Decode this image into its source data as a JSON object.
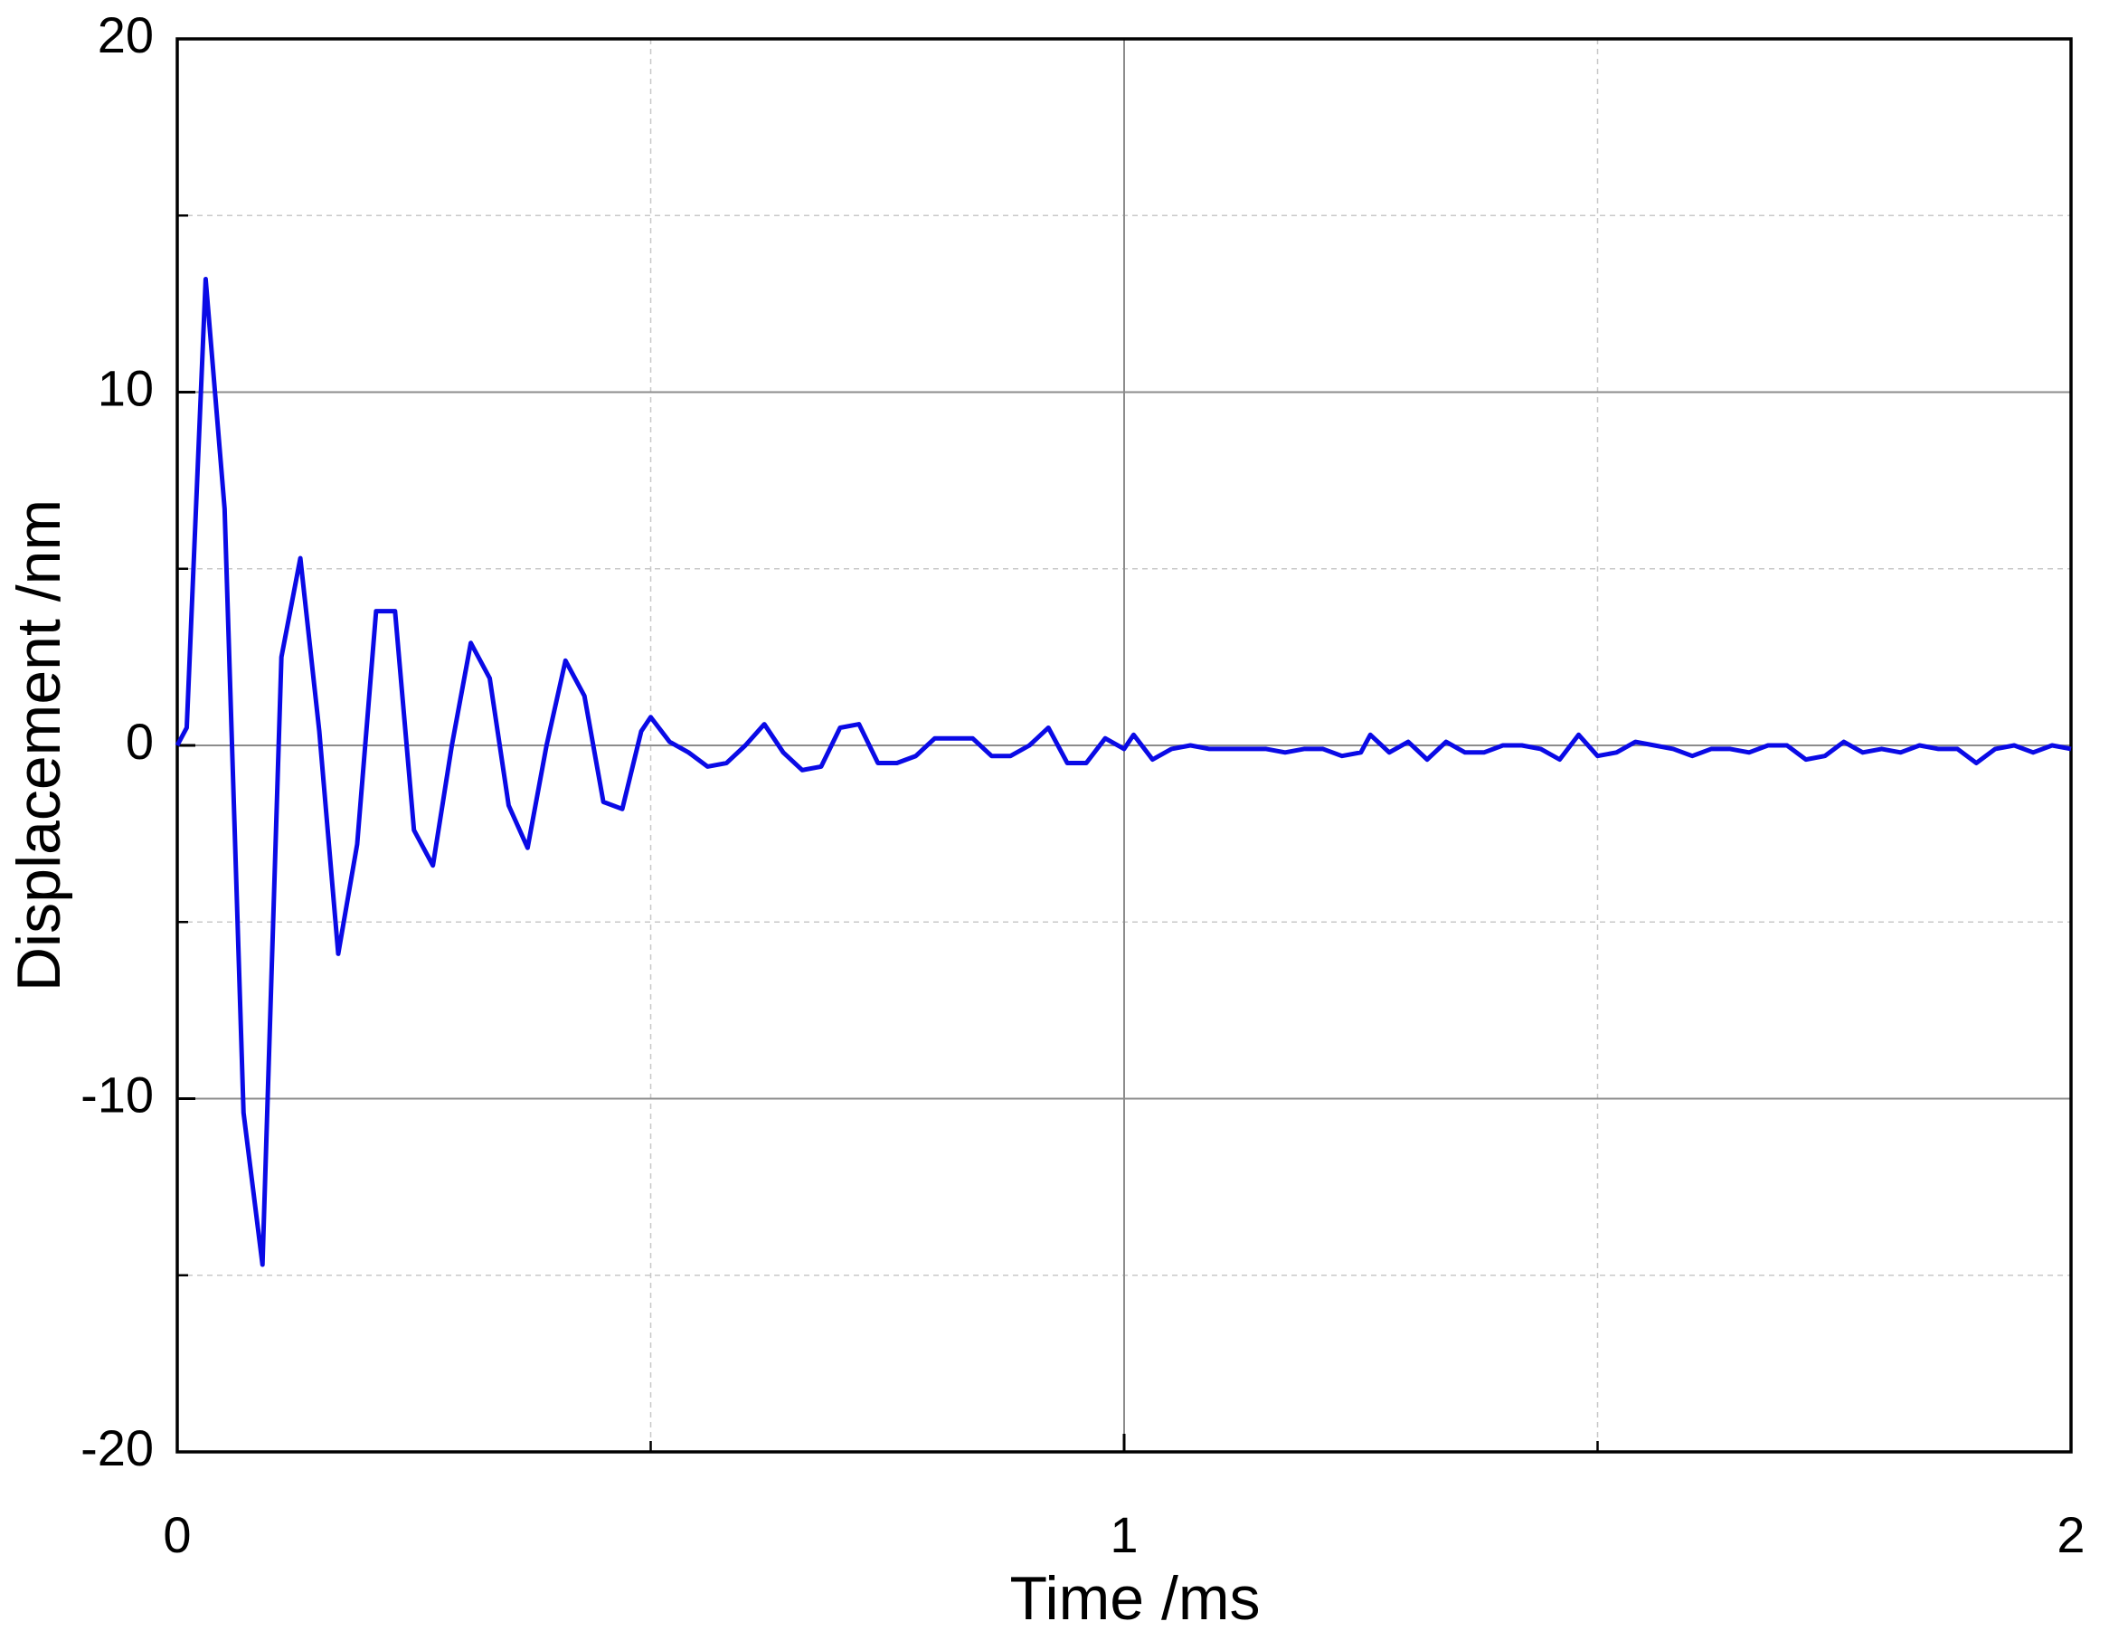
{
  "chart_data": {
    "type": "line",
    "x_label": "Time /ms",
    "y_label": "Displacement /nm",
    "xlim": [
      0,
      2
    ],
    "xticks": [
      0,
      1,
      2
    ],
    "ylim": [
      -20,
      20
    ],
    "yticks": [
      -20,
      -10,
      0,
      10,
      20
    ],
    "grid": true,
    "x": [
      0,
      0.01,
      0.03,
      0.05,
      0.07,
      0.09,
      0.11,
      0.13,
      0.15,
      0.17,
      0.19,
      0.21,
      0.23,
      0.25,
      0.27,
      0.29,
      0.31,
      0.33,
      0.35,
      0.37,
      0.39,
      0.41,
      0.43,
      0.45,
      0.47,
      0.49,
      0.5,
      0.52,
      0.54,
      0.56,
      0.58,
      0.6,
      0.62,
      0.64,
      0.66,
      0.68,
      0.7,
      0.72,
      0.74,
      0.76,
      0.78,
      0.8,
      0.82,
      0.84,
      0.86,
      0.88,
      0.9,
      0.92,
      0.94,
      0.96,
      0.98,
      1.0,
      1.01,
      1.03,
      1.05,
      1.07,
      1.09,
      1.11,
      1.13,
      1.15,
      1.17,
      1.19,
      1.21,
      1.23,
      1.25,
      1.26,
      1.28,
      1.3,
      1.32,
      1.34,
      1.36,
      1.38,
      1.4,
      1.42,
      1.44,
      1.46,
      1.48,
      1.5,
      1.52,
      1.54,
      1.56,
      1.58,
      1.6,
      1.62,
      1.64,
      1.66,
      1.68,
      1.7,
      1.72,
      1.74,
      1.76,
      1.78,
      1.8,
      1.82,
      1.84,
      1.86,
      1.88,
      1.9,
      1.92,
      1.94,
      1.96,
      1.98,
      2.0
    ],
    "series": [
      {
        "name": "Displacement",
        "color": "#0a0ae6",
        "values": [
          0,
          0.5,
          13.2,
          6.7,
          -10.4,
          -14.7,
          2.5,
          5.3,
          0.4,
          -5.9,
          -2.8,
          3.8,
          3.8,
          -2.4,
          -3.4,
          0,
          2.9,
          1.9,
          -1.7,
          -2.9,
          0,
          2.4,
          1.4,
          -1.6,
          -1.8,
          0.4,
          0.8,
          0.1,
          -0.2,
          -0.6,
          -0.5,
          0,
          0.6,
          -0.2,
          -0.7,
          -0.6,
          0.5,
          0.6,
          -0.5,
          -0.5,
          -0.3,
          0.2,
          0.2,
          0.2,
          -0.3,
          -0.3,
          0,
          0.5,
          -0.5,
          -0.5,
          0.2,
          -0.1,
          0.3,
          -0.4,
          -0.1,
          0,
          -0.1,
          -0.1,
          -0.1,
          -0.1,
          -0.2,
          -0.1,
          -0.1,
          -0.3,
          -0.2,
          0.3,
          -0.2,
          0.1,
          -0.4,
          0.1,
          -0.2,
          -0.2,
          0,
          0,
          -0.1,
          -0.4,
          0.3,
          -0.3,
          -0.2,
          0.1,
          0,
          -0.1,
          -0.3,
          -0.1,
          -0.1,
          -0.2,
          0,
          0,
          -0.4,
          -0.3,
          0.1,
          -0.2,
          -0.1,
          -0.2,
          0,
          -0.1,
          -0.1,
          -0.5,
          -0.1,
          0,
          -0.2,
          0,
          -0.1
        ]
      }
    ]
  }
}
